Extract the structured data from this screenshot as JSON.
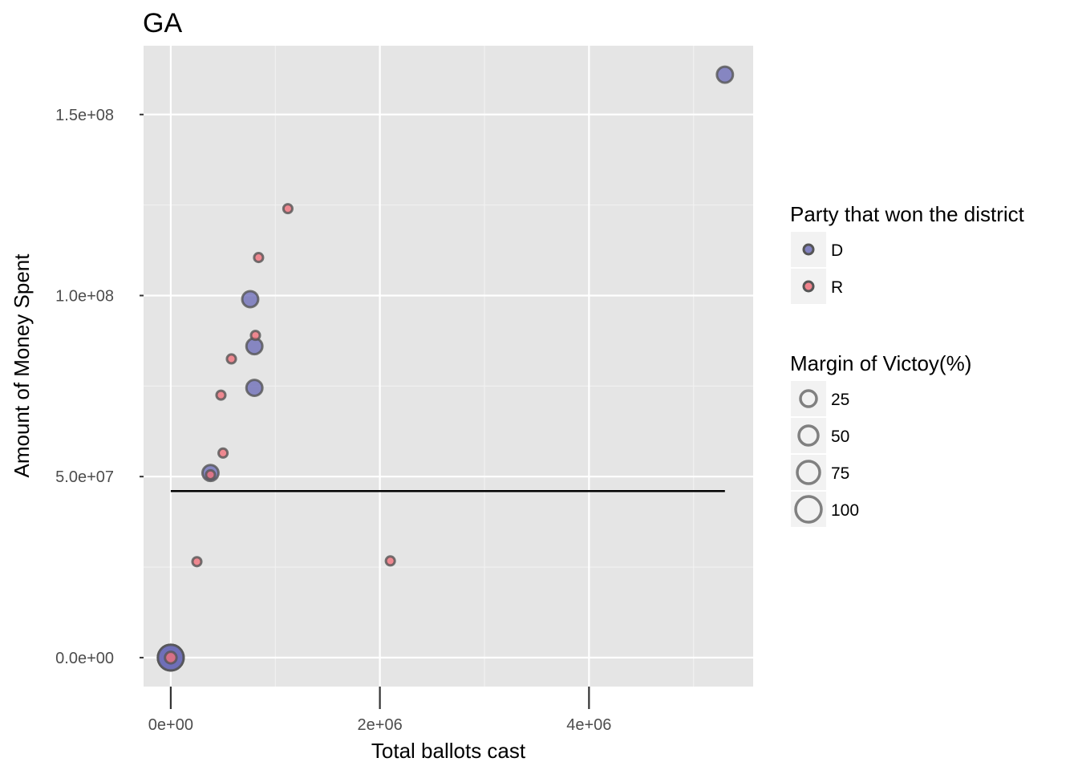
{
  "chart_data": {
    "type": "scatter",
    "title": "GA",
    "xlabel": "Total ballots cast",
    "ylabel": "Amount of Money Spent",
    "xlim": [
      -260000,
      5570000
    ],
    "ylim": [
      -8000000,
      169000000
    ],
    "x_ticks": [
      {
        "value": 0,
        "label": "0e+00"
      },
      {
        "value": 2000000,
        "label": "2e+06"
      },
      {
        "value": 4000000,
        "label": "4e+06"
      }
    ],
    "y_ticks": [
      {
        "value": 0,
        "label": "0.0e+00"
      },
      {
        "value": 50000000,
        "label": "5.0e+07"
      },
      {
        "value": 100000000,
        "label": "1.0e+08"
      },
      {
        "value": 150000000,
        "label": "1.5e+08"
      }
    ],
    "grid": true,
    "panel_background": "#e5e5e5",
    "reference_line": {
      "y": 46000000,
      "x_from": 0,
      "x_to": 5300000,
      "color": "#000000"
    },
    "colors": {
      "D": "#6e6eb8",
      "R": "#f0707a",
      "outline": "#555555"
    },
    "points": [
      {
        "x": 5300000,
        "y": 161000000,
        "party": "D",
        "margin": 45
      },
      {
        "x": 1120000,
        "y": 124000000,
        "party": "R",
        "margin": 5
      },
      {
        "x": 840000,
        "y": 110500000,
        "party": "R",
        "margin": 5
      },
      {
        "x": 760000,
        "y": 99000000,
        "party": "D",
        "margin": 45
      },
      {
        "x": 800000,
        "y": 86000000,
        "party": "D",
        "margin": 45
      },
      {
        "x": 810000,
        "y": 89000000,
        "party": "R",
        "margin": 5
      },
      {
        "x": 580000,
        "y": 82500000,
        "party": "R",
        "margin": 5
      },
      {
        "x": 800000,
        "y": 74500000,
        "party": "D",
        "margin": 45
      },
      {
        "x": 480000,
        "y": 72500000,
        "party": "R",
        "margin": 5
      },
      {
        "x": 500000,
        "y": 56500000,
        "party": "R",
        "margin": 5
      },
      {
        "x": 380000,
        "y": 51000000,
        "party": "D",
        "margin": 45
      },
      {
        "x": 380000,
        "y": 50500000,
        "party": "R",
        "margin": 5
      },
      {
        "x": 250000,
        "y": 26500000,
        "party": "R",
        "margin": 5
      },
      {
        "x": 2100000,
        "y": 26700000,
        "party": "R",
        "margin": 5
      },
      {
        "x": 0,
        "y": 0,
        "party": "D",
        "margin": 100
      },
      {
        "x": 0,
        "y": 0,
        "party": "D",
        "margin": 100
      },
      {
        "x": 0,
        "y": 0,
        "party": "D",
        "margin": 100
      },
      {
        "x": 0,
        "y": 0,
        "party": "R",
        "margin": 20
      }
    ],
    "legend": {
      "position": "right",
      "color": {
        "title": "Party that won the district",
        "items": [
          {
            "key": "D",
            "label": "D"
          },
          {
            "key": "R",
            "label": "R"
          }
        ]
      },
      "size": {
        "title": "Margin of Victoy(%)",
        "items": [
          {
            "value": 25,
            "label": "25"
          },
          {
            "value": 50,
            "label": "50"
          },
          {
            "value": 75,
            "label": "75"
          },
          {
            "value": 100,
            "label": "100"
          }
        ]
      }
    }
  }
}
